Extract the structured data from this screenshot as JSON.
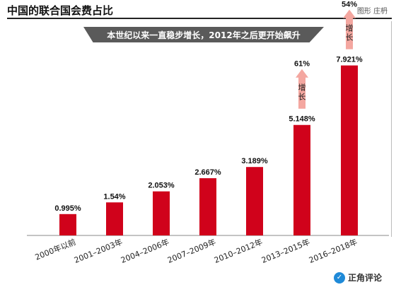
{
  "header": {
    "title": "中国的联合国会费占比",
    "credit": "图形 庄枬",
    "subtitle": "本世纪以来一直稳步增长，2012年之后更开始飙升"
  },
  "chart_data": {
    "type": "bar",
    "categories": [
      "2000年以前",
      "2001–2003年",
      "2004–2006年",
      "2007–2009年",
      "2010–2012年",
      "2013–2015年",
      "2016–2018年"
    ],
    "values": [
      0.995,
      1.54,
      2.053,
      2.667,
      3.189,
      5.148,
      7.921
    ],
    "value_labels": [
      "0.995%",
      "1.54%",
      "2.053%",
      "2.667%",
      "3.189%",
      "5.148%",
      "7.921%"
    ],
    "ylim": [
      0,
      8.5
    ],
    "bar_color": "#d0021b",
    "arrow_color": "#f4a7a0",
    "annotations": [
      {
        "category_index": 5,
        "percent": "61%",
        "label": "增长"
      },
      {
        "category_index": 6,
        "percent": "54%",
        "label": "增长"
      }
    ]
  },
  "watermark": {
    "logo_text": "正角评论"
  }
}
